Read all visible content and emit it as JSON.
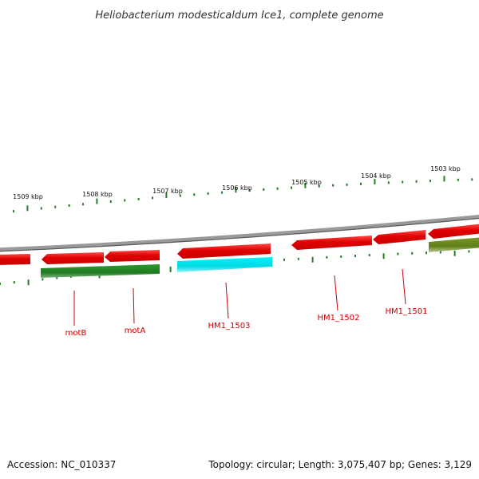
{
  "title": "Heliobacterium modesticaldum Ice1, complete genome",
  "footer": {
    "accession": "Accession: NC_010337",
    "summary": "Topology: circular; Length: 3,075,407 bp; Genes: 3,129"
  },
  "ticks": [
    {
      "label": "1509 kbp"
    },
    {
      "label": "1508 kbp"
    },
    {
      "label": "1507 kbp"
    },
    {
      "label": "1506 kbp"
    },
    {
      "label": "1505 kbp"
    },
    {
      "label": "1504 kbp"
    },
    {
      "label": "1503 kbp"
    }
  ],
  "genes": [
    {
      "label": "motB"
    },
    {
      "label": "motA"
    },
    {
      "label": "HM1_1503"
    },
    {
      "label": "HM1_1502"
    },
    {
      "label": "HM1_1501"
    }
  ],
  "colors": {
    "backbone": "#8c8c8c",
    "cds": "#e00000",
    "cds_highlight": "#ff6060",
    "feature_green": "#2a8a2a",
    "feature_cyan": "#00e5ee",
    "feature_olive": "#6e8f22",
    "tick": "#2a7a2a",
    "gene_label": "#cc0000"
  }
}
